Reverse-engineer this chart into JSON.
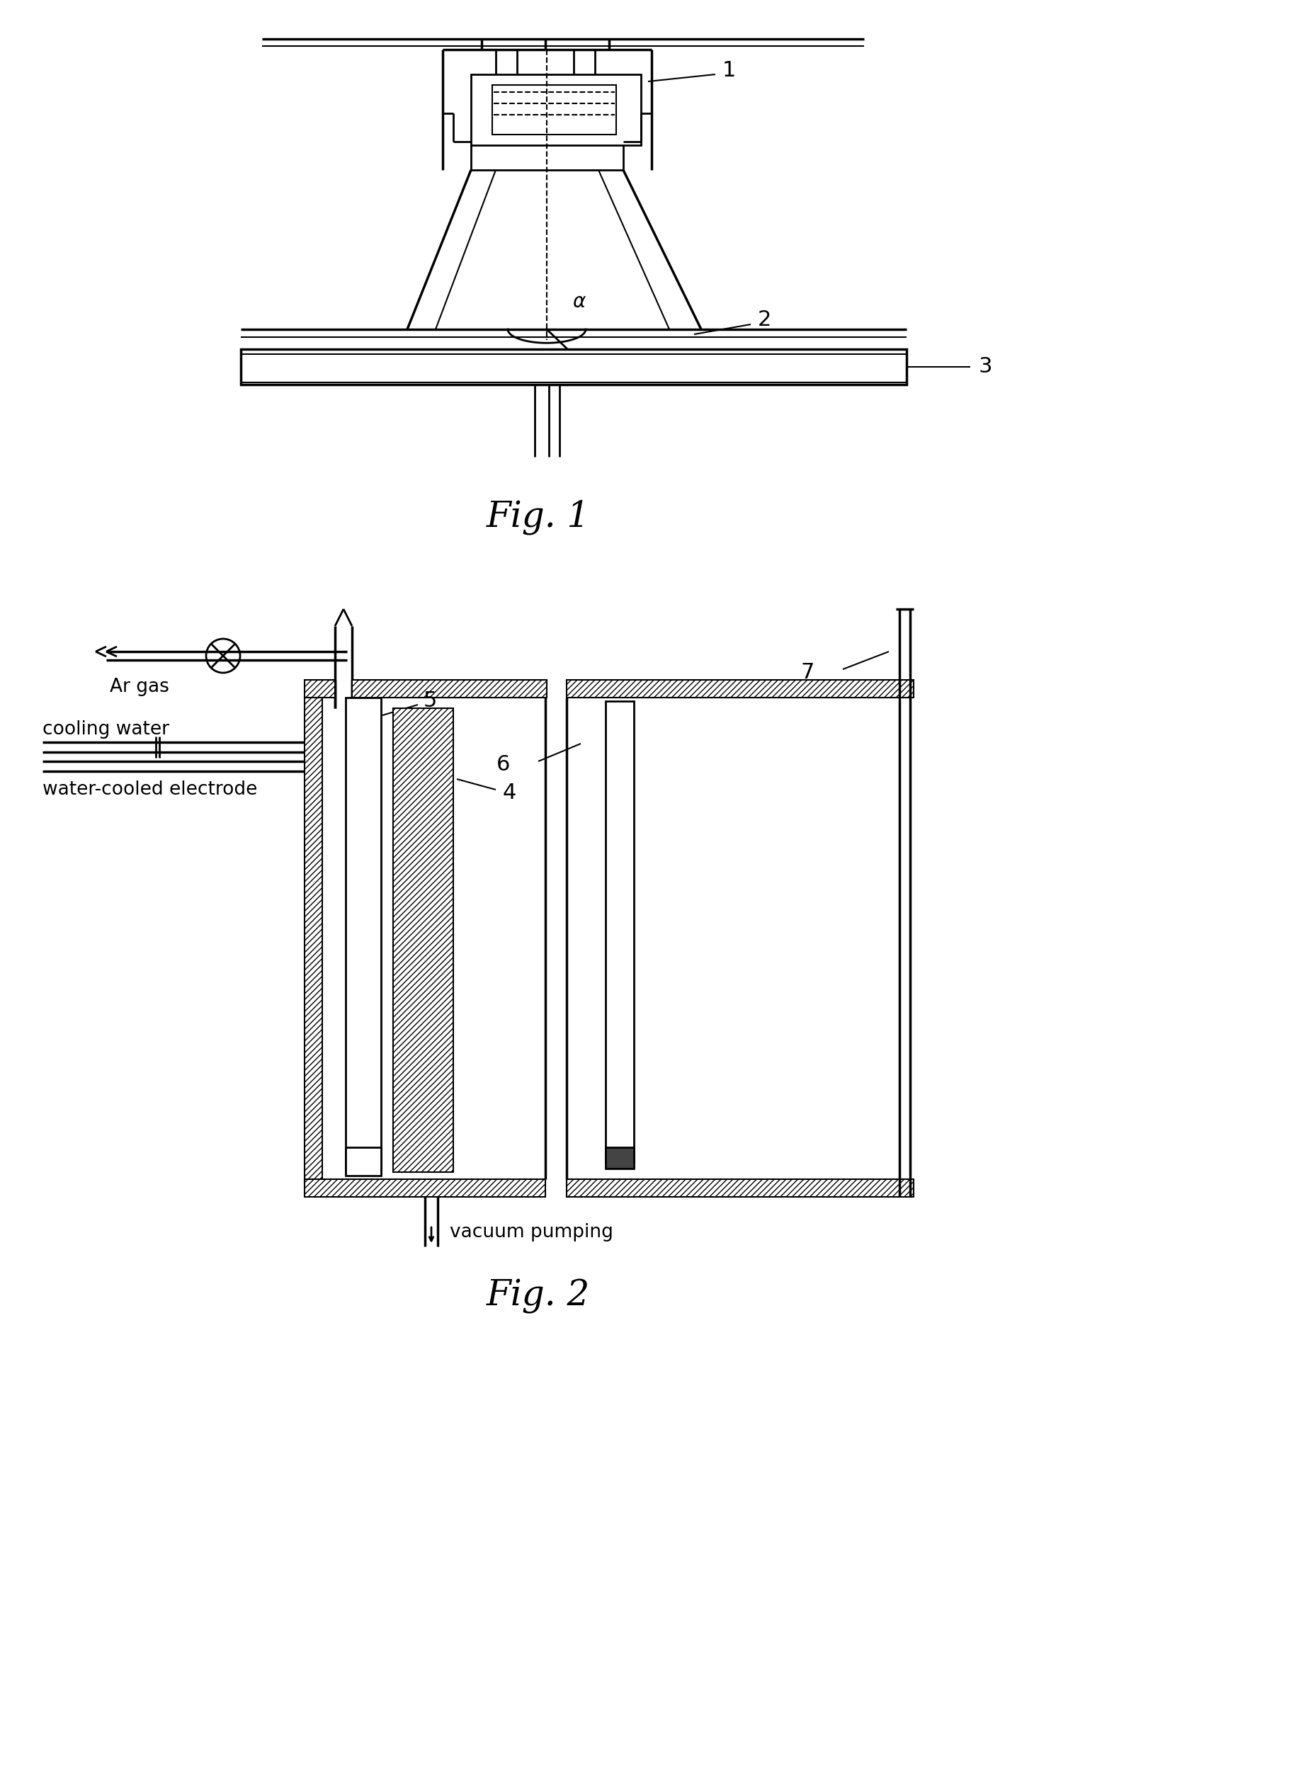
{
  "fig_width": 18.2,
  "fig_height": 25.19,
  "bg_color": "#ffffff",
  "fig1_label": "Fig. 1",
  "fig2_label": "Fig. 2",
  "label_1": "1",
  "label_2": "2",
  "label_3": "3",
  "label_4": "4",
  "label_5": "5",
  "label_6": "6",
  "label_7": "7",
  "label_alpha": "α",
  "label_ar_gas": "Ar gas",
  "label_cooling_water": "cooling water",
  "label_water_cooled": "water-cooled electrode",
  "label_vacuum_pumping": "vacuum pumping"
}
